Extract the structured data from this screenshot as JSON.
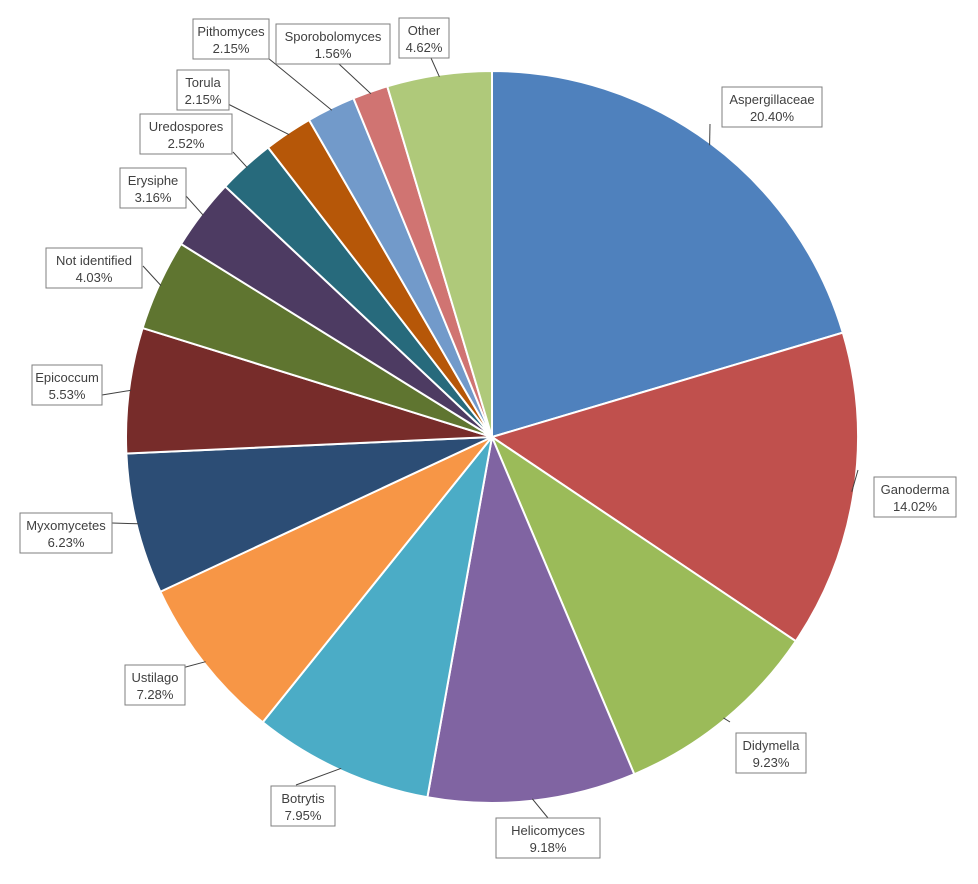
{
  "chart_data": {
    "type": "pie",
    "start_angle_deg": 0,
    "direction": "clockwise",
    "slices": [
      {
        "label": "Aspergillaceae",
        "value": 20.4,
        "display": "20.40%",
        "color": "#4F81BD"
      },
      {
        "label": "Ganoderma",
        "value": 14.02,
        "display": "14.02%",
        "color": "#C0504D"
      },
      {
        "label": "Didymella",
        "value": 9.23,
        "display": "9.23%",
        "color": "#9BBB59"
      },
      {
        "label": "Helicomyces",
        "value": 9.18,
        "display": "9.18%",
        "color": "#8064A2"
      },
      {
        "label": "Botrytis",
        "value": 7.95,
        "display": "7.95%",
        "color": "#4BACC6"
      },
      {
        "label": "Ustilago",
        "value": 7.28,
        "display": "7.28%",
        "color": "#F79646"
      },
      {
        "label": "Myxomycetes",
        "value": 6.23,
        "display": "6.23%",
        "color": "#2C4D75"
      },
      {
        "label": "Epicoccum",
        "value": 5.53,
        "display": "5.53%",
        "color": "#772C2A"
      },
      {
        "label": "Not identified",
        "value": 4.03,
        "display": "4.03%",
        "color": "#5F7530"
      },
      {
        "label": "Erysiphe",
        "value": 3.16,
        "display": "3.16%",
        "color": "#4D3B62"
      },
      {
        "label": "Uredospores",
        "value": 2.52,
        "display": "2.52%",
        "color": "#276A7C"
      },
      {
        "label": "Torula",
        "value": 2.15,
        "display": "2.15%",
        "color": "#B65708"
      },
      {
        "label": "Pithomyces",
        "value": 2.15,
        "display": "2.15%",
        "color": "#729ACA"
      },
      {
        "label": "Sporobolomyces",
        "value": 1.56,
        "display": "1.56%",
        "color": "#D07472"
      },
      {
        "label": "Other",
        "value": 4.62,
        "display": "4.62%",
        "color": "#AFC97A"
      }
    ]
  }
}
